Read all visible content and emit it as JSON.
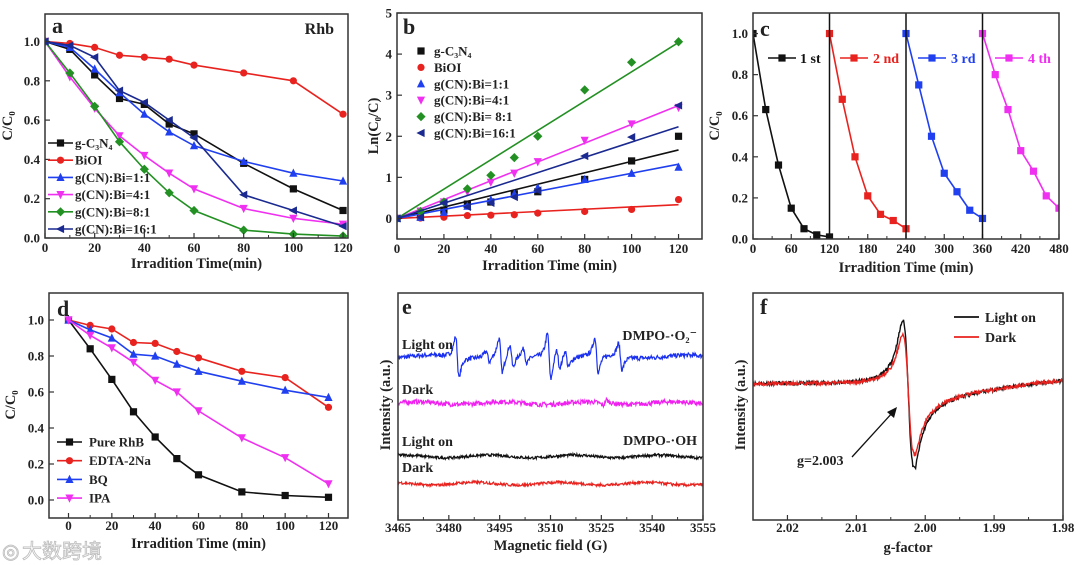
{
  "watermark": "大数跨境",
  "chart_data": [
    {
      "id": "a",
      "type": "line",
      "panel_label": "a",
      "title": "Rhb",
      "xlabel": "Irradition Time(min)",
      "ylabel": "C/C₀",
      "xlim": [
        0,
        122
      ],
      "ylim": [
        0,
        1.14
      ],
      "xticks": [
        0,
        20,
        40,
        60,
        80,
        100,
        120
      ],
      "xtick_labels": [
        "0",
        "20",
        "40",
        "60",
        "80",
        "100",
        "120"
      ],
      "yticks": [
        0,
        0.2,
        0.4,
        0.6,
        0.8,
        1.0
      ],
      "ytick_labels": [
        "0.0",
        "0.2",
        "0.4",
        "0.6",
        "0.8",
        "1.0"
      ],
      "legend_placement": "lower-left",
      "x": [
        0,
        10,
        20,
        30,
        40,
        50,
        60,
        80,
        100,
        120
      ],
      "series": [
        {
          "name": "g-C₃N₄",
          "color": "#111111",
          "marker": "square",
          "values": [
            1,
            0.96,
            0.83,
            0.71,
            0.68,
            0.58,
            0.53,
            0.38,
            0.25,
            0.14
          ]
        },
        {
          "name": "BiOI",
          "color": "#e8231f",
          "marker": "circle",
          "values": [
            1,
            0.99,
            0.97,
            0.93,
            0.92,
            0.91,
            0.88,
            0.84,
            0.8,
            0.63
          ]
        },
        {
          "name": "g(CN):Bi=1:1",
          "color": "#2040f0",
          "marker": "triangle-up",
          "values": [
            1,
            0.97,
            0.86,
            0.74,
            0.63,
            0.54,
            0.47,
            0.39,
            0.33,
            0.29
          ]
        },
        {
          "name": "g(CN):Bi=4:1",
          "color": "#f030f0",
          "marker": "triangle-down",
          "values": [
            1,
            0.82,
            0.66,
            0.52,
            0.42,
            0.33,
            0.25,
            0.15,
            0.1,
            0.07
          ]
        },
        {
          "name": "g(CN):Bi=8:1",
          "color": "#239023",
          "marker": "diamond",
          "values": [
            1,
            0.84,
            0.67,
            0.49,
            0.35,
            0.23,
            0.14,
            0.04,
            0.02,
            0.01
          ]
        },
        {
          "name": "g(CN):Bi=16:1",
          "color": "#1a2a90",
          "marker": "triangle-left",
          "values": [
            1,
            0.98,
            0.92,
            0.75,
            0.69,
            0.6,
            0.51,
            0.22,
            0.14,
            0.06
          ]
        }
      ]
    },
    {
      "id": "b",
      "type": "scatter",
      "panel_label": "b",
      "xlabel": "Irradition Time (min)",
      "ylabel": "Ln(C₀/C)",
      "xlim": [
        0,
        130
      ],
      "ylim": [
        -0.5,
        5
      ],
      "xticks": [
        0,
        20,
        40,
        60,
        80,
        100,
        120
      ],
      "xtick_labels": [
        "0",
        "20",
        "40",
        "60",
        "80",
        "100",
        "120"
      ],
      "yticks": [
        0,
        1,
        2,
        3,
        4,
        5
      ],
      "ytick_labels": [
        "0",
        "1",
        "2",
        "3",
        "4",
        "5"
      ],
      "legend_placement": "top-left",
      "x": [
        0,
        10,
        20,
        30,
        40,
        50,
        60,
        80,
        100,
        120
      ],
      "fit": "linear through origin, 0-120 min",
      "series": [
        {
          "name": "g-C₃N₄",
          "color": "#111111",
          "marker": "square",
          "slope": 0.0139,
          "values": [
            0,
            0.05,
            0.2,
            0.35,
            0.4,
            0.6,
            0.65,
            0.95,
            1.4,
            2.0
          ]
        },
        {
          "name": "BiOI",
          "color": "#e8231f",
          "marker": "circle",
          "slope": 0.0028,
          "values": [
            0,
            0.01,
            0.03,
            0.07,
            0.08,
            0.09,
            0.13,
            0.17,
            0.22,
            0.46
          ]
        },
        {
          "name": "g(CN):Bi=1:1",
          "color": "#2040f0",
          "marker": "triangle-up",
          "slope": 0.011,
          "values": [
            0,
            0.03,
            0.15,
            0.3,
            0.45,
            0.6,
            0.75,
            0.95,
            1.1,
            1.25
          ]
        },
        {
          "name": "g(CN):Bi=4:1",
          "color": "#f030f0",
          "marker": "triangle-down",
          "slope": 0.0229,
          "values": [
            0,
            0.18,
            0.4,
            0.65,
            0.88,
            1.1,
            1.38,
            1.9,
            2.3,
            2.7
          ]
        },
        {
          "name": "g(CN):Bi= 8:1",
          "color": "#239023",
          "marker": "diamond",
          "slope": 0.0357,
          "values": [
            0,
            0.17,
            0.4,
            0.72,
            1.05,
            1.48,
            2.0,
            3.13,
            3.8,
            4.3
          ]
        },
        {
          "name": "g(CN):Bi=16:1",
          "color": "#1a2a90",
          "marker": "triangle-left",
          "slope": 0.0186,
          "values": [
            0,
            0.03,
            0.38,
            0.28,
            0.38,
            0.52,
            0.68,
            1.52,
            1.98,
            2.75
          ]
        }
      ]
    },
    {
      "id": "c",
      "type": "line",
      "panel_label": "c",
      "xlabel": "Irradition Time (min)",
      "ylabel": "C/C₀",
      "xlim": [
        0,
        480
      ],
      "ylim": [
        0,
        1.1
      ],
      "xticks": [
        0,
        60,
        120,
        180,
        240,
        300,
        360,
        420,
        480
      ],
      "xtick_labels": [
        "0",
        "60",
        "120",
        "180",
        "240",
        "300",
        "360",
        "420",
        "480"
      ],
      "yticks": [
        0,
        0.2,
        0.4,
        0.6,
        0.8,
        1.0
      ],
      "ytick_labels": [
        "0.0",
        "0.2",
        "0.4",
        "0.6",
        "0.8",
        "1.0"
      ],
      "cycle_dividers": [
        120,
        240,
        360
      ],
      "legend_placement": "top, inline per cycle",
      "series": [
        {
          "name": "1 st",
          "color": "#111111",
          "marker": "square",
          "x": [
            0,
            20,
            40,
            60,
            80,
            100,
            120
          ],
          "values": [
            1,
            0.63,
            0.36,
            0.15,
            0.05,
            0.02,
            0.01
          ]
        },
        {
          "name": "2 nd",
          "color": "#e8231f",
          "marker": "square",
          "x": [
            120,
            140,
            160,
            180,
            200,
            220,
            240
          ],
          "values": [
            1,
            0.68,
            0.4,
            0.21,
            0.12,
            0.09,
            0.05
          ]
        },
        {
          "name": "3 rd",
          "color": "#2040f0",
          "marker": "square",
          "x": [
            240,
            260,
            280,
            300,
            320,
            340,
            360
          ],
          "values": [
            1,
            0.75,
            0.5,
            0.32,
            0.23,
            0.14,
            0.1
          ]
        },
        {
          "name": "4 th",
          "color": "#f030f0",
          "marker": "square",
          "x": [
            360,
            380,
            400,
            420,
            440,
            460,
            480
          ],
          "values": [
            1,
            0.8,
            0.63,
            0.43,
            0.33,
            0.21,
            0.15
          ]
        }
      ]
    },
    {
      "id": "d",
      "type": "line",
      "panel_label": "d",
      "xlabel": "Irradition Time (min)",
      "ylabel": "C/C₀",
      "xlim": [
        -9,
        129
      ],
      "ylim": [
        -0.1,
        1.15
      ],
      "xticks": [
        0,
        20,
        40,
        60,
        80,
        100,
        120
      ],
      "xtick_labels": [
        "0",
        "20",
        "40",
        "60",
        "80",
        "100",
        "120"
      ],
      "yticks": [
        0,
        0.2,
        0.4,
        0.6,
        0.8,
        1.0
      ],
      "ytick_labels": [
        "0.0",
        "0.2",
        "0.4",
        "0.6",
        "0.8",
        "1.0"
      ],
      "legend_placement": "lower-left",
      "x": [
        0,
        10,
        20,
        30,
        40,
        50,
        60,
        80,
        100,
        120
      ],
      "series": [
        {
          "name": "Pure RhB",
          "color": "#111111",
          "marker": "square",
          "values": [
            1,
            0.84,
            0.67,
            0.49,
            0.35,
            0.23,
            0.14,
            0.045,
            0.025,
            0.015
          ]
        },
        {
          "name": "EDTA-2Na",
          "color": "#e8231f",
          "marker": "circle",
          "values": [
            1,
            0.97,
            0.95,
            0.875,
            0.87,
            0.825,
            0.79,
            0.715,
            0.68,
            0.515
          ]
        },
        {
          "name": "BQ",
          "color": "#2040f0",
          "marker": "triangle-up",
          "values": [
            1,
            0.945,
            0.9,
            0.81,
            0.8,
            0.755,
            0.715,
            0.66,
            0.61,
            0.57
          ]
        },
        {
          "name": "IPA",
          "color": "#f030f0",
          "marker": "triangle-down",
          "values": [
            1,
            0.915,
            0.845,
            0.765,
            0.665,
            0.6,
            0.495,
            0.345,
            0.235,
            0.09
          ]
        }
      ]
    },
    {
      "id": "e",
      "type": "line",
      "panel_label": "e",
      "xlabel": "Magnetic field (G)",
      "ylabel": "Intensity (a.u.)",
      "xlim": [
        3465,
        3555
      ],
      "ylim": [
        0,
        100
      ],
      "xticks": [
        3465,
        3480,
        3495,
        3510,
        3525,
        3540,
        3555
      ],
      "xtick_labels": [
        "3465",
        "3480",
        "3495",
        "3510",
        "3525",
        "3540",
        "3555"
      ],
      "annotations": [
        "DMPO-·O₂⁻",
        "DMPO-·OH"
      ],
      "series": [
        {
          "name": "Light on",
          "group": "DMPO-·O₂⁻",
          "color": "#1a30f0",
          "baseline": 72,
          "noise": 1.0,
          "peaks": [
            [
              3482.5,
              14
            ],
            [
              3491.5,
              4
            ],
            [
              3495.3,
              12
            ],
            [
              3498.5,
              8
            ],
            [
              3502.5,
              5
            ],
            [
              3509.6,
              16
            ],
            [
              3512.3,
              7
            ],
            [
              3514.8,
              6
            ],
            [
              3523.6,
              12
            ],
            [
              3530.6,
              9
            ]
          ]
        },
        {
          "name": "Dark",
          "group": "DMPO-·O₂⁻",
          "color": "#f020f0",
          "baseline": 51.5,
          "noise": 1.0,
          "peaks": [
            [
              3526,
              -2
            ]
          ]
        },
        {
          "name": "Light on",
          "group": "DMPO-·OH",
          "color": "#111111",
          "baseline": 28,
          "noise": 0.6,
          "peaks": []
        },
        {
          "name": "Dark",
          "group": "DMPO-·OH",
          "color": "#e8231f",
          "baseline": 16,
          "noise": 0.6,
          "peaks": []
        }
      ]
    },
    {
      "id": "f",
      "type": "line",
      "panel_label": "f",
      "xlabel": "g-factor",
      "ylabel": "Intensity (a.u.)",
      "xlim": [
        2.025,
        1.98
      ],
      "ylim": [
        -1,
        1
      ],
      "xticks": [
        2.02,
        2.01,
        2.0,
        1.99,
        1.98
      ],
      "xtick_labels": [
        "2.02",
        "2.01",
        "2.00",
        "1.99",
        "1.98"
      ],
      "legend_placement": "top-right",
      "annotation": "g=2.003",
      "center_g": 2.0025,
      "series": [
        {
          "name": "Light on",
          "color": "#111111",
          "amplitude": 1.0
        },
        {
          "name": "Dark",
          "color": "#e8231f",
          "amplitude": 0.78
        }
      ]
    }
  ]
}
